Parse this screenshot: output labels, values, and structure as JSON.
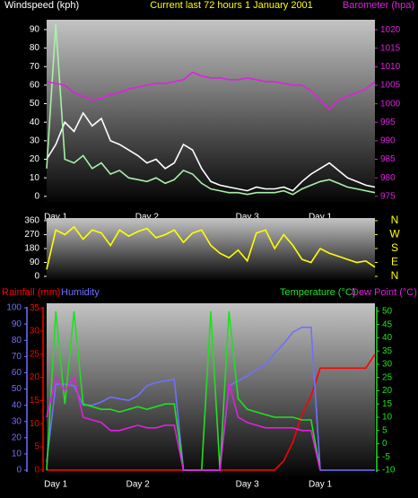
{
  "chart_data": [
    {
      "type": "line",
      "title": "Current last 72 hours 1 January 2001",
      "y_label": "Windspeed (kph)",
      "y2_label": "Barometer (hpa)",
      "categories": [
        null,
        "Day 1",
        null,
        null,
        null,
        null,
        null,
        null,
        null,
        null,
        null,
        "Day 2",
        null,
        null,
        null,
        null,
        null,
        null,
        null,
        null,
        null,
        null,
        "Day 3",
        null,
        null,
        null,
        null,
        null,
        null,
        null,
        "Day 1",
        null,
        null,
        null,
        null,
        null,
        null
      ],
      "ylim": [
        -3,
        95.3
      ],
      "yticks": [
        0,
        10,
        20,
        30,
        40,
        50,
        60,
        70,
        80,
        90
      ],
      "y2lim": [
        973.5,
        1022.7
      ],
      "y2ticks": [
        975,
        980,
        985,
        990,
        995,
        1000,
        1005,
        1010,
        1015,
        1020
      ],
      "series": [
        {
          "color": "#ffffff",
          "values": [
            20,
            28,
            40,
            35,
            45,
            38,
            42,
            30,
            28,
            25,
            22,
            18,
            20,
            15,
            18,
            28,
            25,
            15,
            8,
            6,
            5,
            4,
            3,
            5,
            4,
            4,
            5,
            3,
            8,
            12,
            15,
            18,
            14,
            10,
            8,
            6,
            5
          ]
        },
        {
          "color": "#a8f0a8",
          "values": [
            15,
            93,
            20,
            18,
            22,
            15,
            18,
            12,
            14,
            10,
            9,
            8,
            10,
            7,
            9,
            14,
            12,
            7,
            4,
            3,
            2,
            2,
            1,
            2,
            2,
            2,
            3,
            1,
            4,
            6,
            8,
            9,
            7,
            5,
            4,
            3,
            2
          ]
        },
        {
          "color": "#e020e0",
          "axis": "y2",
          "values": [
            1006,
            1005.5,
            1005,
            1003,
            1002,
            1001,
            1001.5,
            1002.5,
            1003,
            1004,
            1004.5,
            1005,
            1005.5,
            1005.5,
            1006,
            1006.5,
            1008.5,
            1007.5,
            1007,
            1007,
            1006.5,
            1006.5,
            1007,
            1006.5,
            1006,
            1006,
            1005.5,
            1005,
            1005,
            1003.5,
            1001,
            998.5,
            1001,
            1002,
            1003,
            1004,
            1006
          ]
        }
      ]
    },
    {
      "type": "line",
      "categories": [
        null,
        "Day 1",
        null,
        null,
        null,
        null,
        null,
        null,
        null,
        null,
        null,
        "Day 2",
        null,
        null,
        null,
        null,
        null,
        null,
        null,
        null,
        null,
        null,
        "Day 3",
        null,
        null,
        null,
        null,
        null,
        null,
        null,
        "Day 1",
        null,
        null,
        null,
        null,
        null,
        null
      ],
      "ylim": [
        -23,
        377
      ],
      "yticks": [
        0,
        90,
        180,
        270,
        360
      ],
      "y2lim": [
        -23,
        377
      ],
      "y2ticks": [
        {
          "value": 360,
          "label": "N"
        },
        {
          "value": 270,
          "label": "W"
        },
        {
          "value": 180,
          "label": "S"
        },
        {
          "value": 90,
          "label": "E"
        },
        {
          "value": 0,
          "label": "N"
        }
      ],
      "series": [
        {
          "color": "#ffff00",
          "values": [
            45,
            300,
            270,
            320,
            240,
            300,
            280,
            200,
            300,
            260,
            290,
            310,
            250,
            270,
            300,
            220,
            280,
            300,
            200,
            150,
            120,
            170,
            100,
            280,
            300,
            180,
            270,
            200,
            110,
            90,
            180,
            150,
            130,
            110,
            90,
            100,
            60
          ]
        }
      ]
    },
    {
      "type": "line",
      "categories": [
        null,
        "Day 1",
        null,
        null,
        null,
        null,
        null,
        null,
        null,
        null,
        "Day 2",
        null,
        null,
        null,
        null,
        null,
        null,
        null,
        null,
        null,
        null,
        null,
        "Day 3",
        null,
        null,
        null,
        null,
        null,
        null,
        null,
        "Day 1",
        null,
        null,
        null,
        null,
        null,
        null
      ],
      "ylim": [
        -3.3,
        102.8
      ],
      "yticks": [
        0,
        10,
        20,
        30,
        40,
        50,
        60,
        70,
        80,
        90,
        100
      ],
      "y3lim": [
        -1.2,
        36
      ],
      "y3ticks": [
        0,
        5,
        10,
        15,
        20,
        25,
        30,
        35
      ],
      "y2lim": [
        -12,
        53
      ],
      "y2ticks": [
        -10,
        -5,
        0,
        5,
        10,
        15,
        20,
        25,
        30,
        35,
        40,
        45,
        50
      ],
      "series": [
        {
          "name": "Rainfall (mm)",
          "color": "#ff0000",
          "axis": "y3",
          "values": [
            0,
            0,
            0,
            0,
            0,
            0,
            0,
            0,
            0,
            0,
            0,
            0,
            0,
            0,
            0,
            0,
            0,
            0,
            0,
            0,
            0,
            0,
            0,
            0,
            0,
            0,
            2,
            6,
            12,
            16,
            22,
            22,
            22,
            22,
            22,
            22,
            25
          ]
        },
        {
          "name": "Humidity",
          "color": "#7070ff",
          "values": [
            5,
            53,
            53,
            52,
            40,
            40,
            42,
            45,
            44,
            43,
            46,
            52,
            54,
            55,
            56,
            0,
            0,
            0,
            0,
            0,
            52,
            55,
            58,
            62,
            65,
            72,
            78,
            85,
            88,
            88,
            0,
            0,
            0,
            0,
            0,
            0,
            0
          ]
        },
        {
          "name": "Temperature (°C)",
          "color": "#20e020",
          "axis": "y2",
          "values": [
            -10,
            50,
            15,
            50,
            15,
            14,
            13,
            13,
            12,
            13,
            14,
            13,
            14,
            15,
            15,
            -10,
            -10,
            -10,
            50,
            -10,
            50,
            17,
            13,
            12,
            11,
            10,
            10,
            10,
            9,
            9,
            -10,
            null,
            null,
            null,
            null,
            null,
            null
          ]
        },
        {
          "name": "Dew Point (°C)",
          "color": "#e020e0",
          "axis": "y2",
          "values": [
            10,
            25,
            20,
            25,
            10,
            9,
            8,
            5,
            5,
            6,
            7,
            6,
            6,
            7,
            7,
            -10,
            -10,
            -10,
            -10,
            -10,
            23,
            10,
            8,
            7,
            6,
            6,
            6,
            6,
            5,
            5,
            -10,
            null,
            null,
            null,
            null,
            null,
            null
          ]
        }
      ]
    }
  ]
}
